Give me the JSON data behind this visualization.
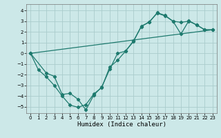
{
  "xlabel": "Humidex (Indice chaleur)",
  "line_color": "#1e7a6e",
  "bg_color": "#cce8e8",
  "grid_color": "#aacccc",
  "xlim": [
    -0.5,
    23.5
  ],
  "ylim": [
    -5.6,
    4.6
  ],
  "xticks": [
    0,
    1,
    2,
    3,
    4,
    5,
    6,
    7,
    8,
    9,
    10,
    11,
    12,
    13,
    14,
    15,
    16,
    17,
    18,
    19,
    20,
    21,
    22,
    23
  ],
  "yticks": [
    -5,
    -4,
    -3,
    -2,
    -1,
    0,
    1,
    2,
    3,
    4
  ],
  "line1_x": [
    0,
    1,
    2,
    3,
    4,
    5,
    6,
    7,
    8,
    9,
    10,
    11,
    12,
    13,
    14,
    15,
    16,
    17,
    18,
    19,
    20,
    21,
    22,
    23
  ],
  "line1_y": [
    0.0,
    -1.55,
    -2.2,
    -3.0,
    -4.0,
    -4.85,
    -5.05,
    -4.8,
    -3.8,
    -3.2,
    -1.3,
    -0.65,
    0.2,
    1.15,
    2.5,
    2.95,
    3.75,
    3.5,
    3.0,
    2.9,
    3.0,
    2.65,
    2.2,
    2.2
  ],
  "line2_x": [
    0,
    2,
    3,
    4,
    5,
    6,
    7,
    8,
    9,
    10,
    11,
    12,
    13,
    14,
    15,
    16,
    17,
    18,
    19,
    20,
    21,
    22,
    23
  ],
  "line2_y": [
    0.0,
    -1.85,
    -2.15,
    -3.85,
    -3.75,
    -4.3,
    -5.3,
    -3.9,
    -3.15,
    -1.5,
    0.0,
    0.2,
    1.1,
    2.55,
    2.9,
    3.8,
    3.55,
    3.0,
    1.8,
    3.05,
    2.65,
    2.2,
    2.2
  ],
  "line3_x": [
    0,
    23
  ],
  "line3_y": [
    0.0,
    2.2
  ],
  "figsize": [
    3.2,
    2.0
  ],
  "dpi": 100,
  "xlabel_fontsize": 6.5,
  "tick_fontsize": 5.0
}
